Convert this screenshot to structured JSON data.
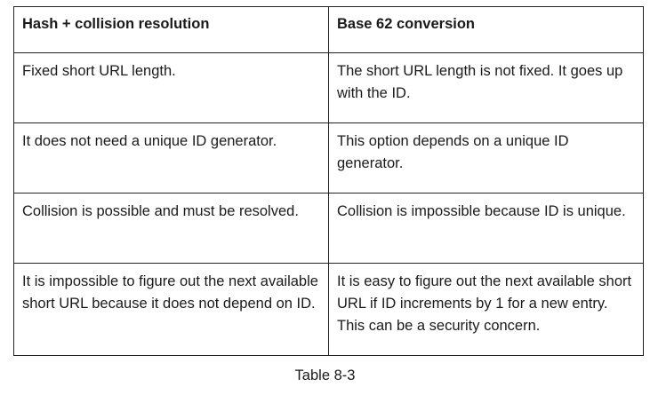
{
  "table": {
    "headers": [
      "Hash + collision resolution",
      "Base 62 conversion"
    ],
    "rows": [
      [
        "Fixed short URL length.",
        "The short URL length is not fixed. It goes up with the ID."
      ],
      [
        "It does not need a unique ID generator.",
        "This option depends on a unique ID generator."
      ],
      [
        "Collision is possible and must be resolved.",
        "Collision is impossible because ID is unique."
      ],
      [
        "It is impossible to figure out the next available short URL because it does not depend on ID.",
        "It is easy to figure out the next available short URL if ID increments by 1 for a new entry. This can be a security concern."
      ]
    ]
  },
  "caption": "Table 8-3"
}
